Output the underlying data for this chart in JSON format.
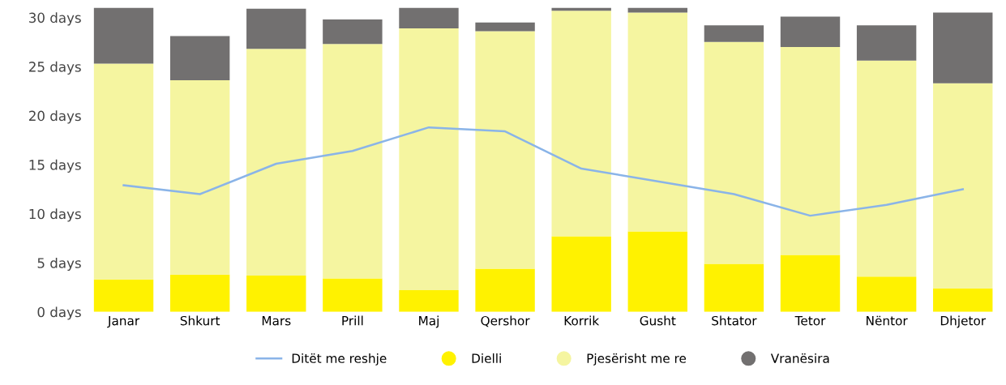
{
  "chart_data": {
    "type": "bar",
    "stacked": true,
    "categories": [
      "Janar",
      "Shkurt",
      "Mars",
      "Prill",
      "Maj",
      "Qershor",
      "Korrik",
      "Gusht",
      "Shtator",
      "Tetor",
      "Nëntor",
      "Dhjetor"
    ],
    "series": [
      {
        "name": "Dielli",
        "color": "#fff200",
        "values": [
          3.3,
          3.8,
          3.7,
          3.4,
          2.2,
          4.4,
          7.7,
          8.2,
          4.9,
          5.8,
          3.6,
          2.4
        ]
      },
      {
        "name": "Pjesërisht me re",
        "color": "#f5f5a0",
        "values": [
          22,
          19.8,
          23.1,
          23.9,
          26.7,
          24.2,
          23,
          22.3,
          22.6,
          21.2,
          22,
          20.9
        ]
      },
      {
        "name": "Vranësira",
        "color": "#727070",
        "values": [
          5.7,
          4.5,
          4.1,
          2.5,
          2.1,
          0.9,
          0.3,
          0.5,
          1.7,
          3.1,
          3.6,
          7.2
        ]
      },
      {
        "name": "Ditët me reshje",
        "type": "line",
        "color": "#8ab4e8",
        "values": [
          12.9,
          12.0,
          15.1,
          16.4,
          18.8,
          18.4,
          14.6,
          13.3,
          12.0,
          9.8,
          10.9,
          12.5
        ]
      }
    ],
    "ylim": [
      0,
      31
    ],
    "yticks": [
      {
        "value": 0,
        "label": "0 days"
      },
      {
        "value": 5,
        "label": "5 days"
      },
      {
        "value": 10,
        "label": "10 days"
      },
      {
        "value": 15,
        "label": "15 days"
      },
      {
        "value": 20,
        "label": "20 days"
      },
      {
        "value": 25,
        "label": "25 days"
      },
      {
        "value": 30,
        "label": "30 days"
      }
    ],
    "grid": false,
    "legend": "bottom",
    "marker": "none",
    "line_style": "solid"
  }
}
